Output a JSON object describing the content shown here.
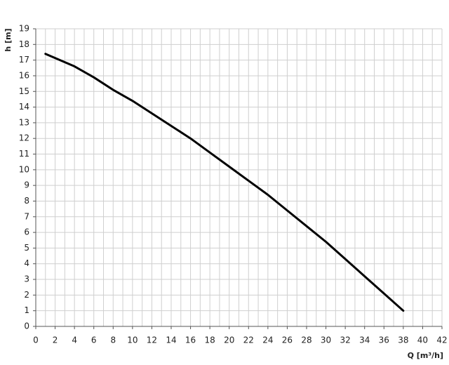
{
  "chart_data": {
    "type": "line",
    "xlabel": "Q [m³/h]",
    "ylabel": "h [m]",
    "x": [
      1,
      4,
      6,
      8,
      10,
      12,
      14,
      16,
      18,
      20,
      22,
      24,
      26,
      28,
      30,
      32,
      34,
      36,
      38
    ],
    "series": [
      {
        "name": "h",
        "color": "#000000",
        "values": [
          17.4,
          16.6,
          15.9,
          15.1,
          14.4,
          13.6,
          12.8,
          12.0,
          11.1,
          10.2,
          9.3,
          8.4,
          7.4,
          6.4,
          5.4,
          4.3,
          3.2,
          2.1,
          1.0
        ]
      }
    ],
    "xlim": [
      0,
      42
    ],
    "ylim": [
      0,
      19
    ],
    "xticks": [
      0,
      2,
      4,
      6,
      8,
      10,
      12,
      14,
      16,
      18,
      20,
      22,
      24,
      26,
      28,
      30,
      32,
      34,
      36,
      38,
      40,
      42
    ],
    "xminorticks": [
      1,
      3,
      5,
      7,
      9,
      11,
      13,
      15,
      17,
      19,
      21,
      23,
      25,
      27,
      29,
      31,
      33,
      35,
      37,
      39,
      41
    ],
    "yticks": [
      0,
      1,
      2,
      3,
      4,
      5,
      6,
      7,
      8,
      9,
      10,
      11,
      12,
      13,
      14,
      15,
      16,
      17,
      18,
      19
    ],
    "grid": true
  }
}
